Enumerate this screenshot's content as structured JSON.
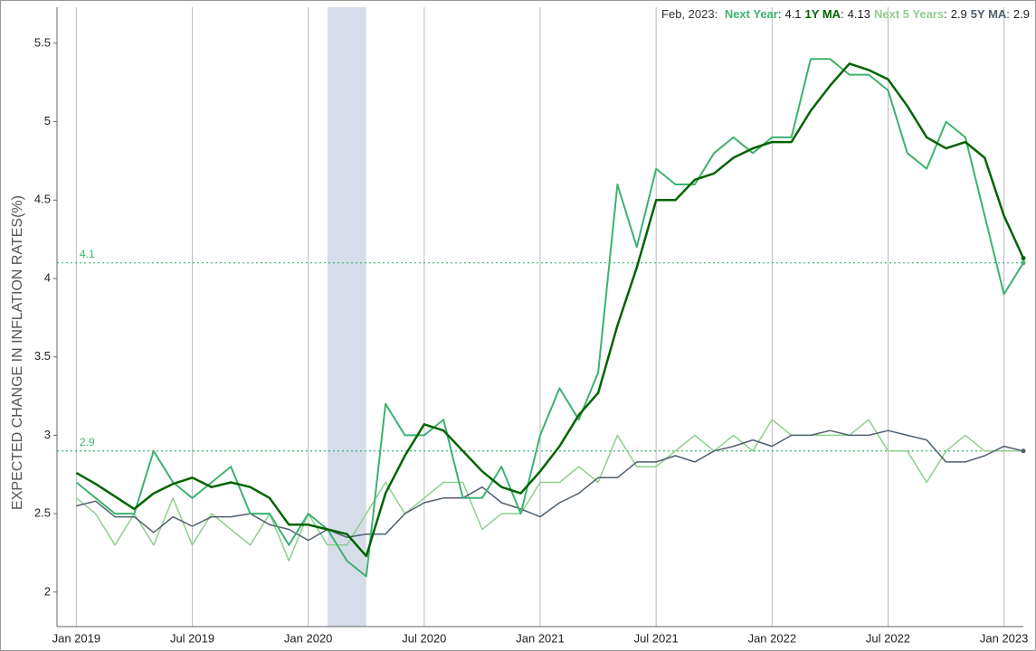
{
  "chart_data": {
    "type": "line",
    "y_label": "EXPECTED CHANGE IN INFLATION RATES(%)",
    "x": [
      "2019-01",
      "2019-02",
      "2019-03",
      "2019-04",
      "2019-05",
      "2019-06",
      "2019-07",
      "2019-08",
      "2019-09",
      "2019-10",
      "2019-11",
      "2019-12",
      "2020-01",
      "2020-02",
      "2020-03",
      "2020-04",
      "2020-05",
      "2020-06",
      "2020-07",
      "2020-08",
      "2020-09",
      "2020-10",
      "2020-11",
      "2020-12",
      "2021-01",
      "2021-02",
      "2021-03",
      "2021-04",
      "2021-05",
      "2021-06",
      "2021-07",
      "2021-08",
      "2021-09",
      "2021-10",
      "2021-11",
      "2021-12",
      "2022-01",
      "2022-02",
      "2022-03",
      "2022-04",
      "2022-05",
      "2022-06",
      "2022-07",
      "2022-08",
      "2022-09",
      "2022-10",
      "2022-11",
      "2022-12",
      "2023-01",
      "2023-02"
    ],
    "series": [
      {
        "name": "Next Year",
        "color": "#3cb371",
        "width": 2,
        "values": [
          2.7,
          2.6,
          2.5,
          2.5,
          2.9,
          2.7,
          2.6,
          2.7,
          2.8,
          2.5,
          2.5,
          2.3,
          2.5,
          2.4,
          2.2,
          2.1,
          3.2,
          3.0,
          3.0,
          3.1,
          2.6,
          2.6,
          2.8,
          2.5,
          3.0,
          3.3,
          3.1,
          3.4,
          4.6,
          4.2,
          4.7,
          4.6,
          4.6,
          4.8,
          4.9,
          4.8,
          4.9,
          4.9,
          5.4,
          5.4,
          5.3,
          5.3,
          5.2,
          4.8,
          4.7,
          5.0,
          4.9,
          4.4,
          3.9,
          4.1
        ]
      },
      {
        "name": "1Y MA",
        "color": "#006400",
        "width": 2.5,
        "values": [
          2.76,
          2.69,
          2.61,
          2.53,
          2.63,
          2.69,
          2.73,
          2.67,
          2.7,
          2.67,
          2.6,
          2.43,
          2.43,
          2.4,
          2.37,
          2.23,
          2.63,
          2.87,
          3.07,
          3.03,
          2.9,
          2.77,
          2.67,
          2.63,
          2.77,
          2.93,
          3.13,
          3.27,
          3.7,
          4.07,
          4.5,
          4.5,
          4.63,
          4.67,
          4.77,
          4.83,
          4.87,
          4.87,
          5.07,
          5.23,
          5.37,
          5.33,
          5.27,
          5.1,
          4.9,
          4.83,
          4.87,
          4.77,
          4.4,
          4.13
        ]
      },
      {
        "name": "Next 5 Years",
        "color": "#8fcf8f",
        "width": 1.5,
        "values": [
          2.6,
          2.5,
          2.3,
          2.5,
          2.3,
          2.6,
          2.3,
          2.5,
          2.4,
          2.3,
          2.5,
          2.2,
          2.5,
          2.3,
          2.3,
          2.5,
          2.7,
          2.5,
          2.6,
          2.7,
          2.7,
          2.4,
          2.5,
          2.5,
          2.7,
          2.7,
          2.8,
          2.7,
          3.0,
          2.8,
          2.8,
          2.9,
          3.0,
          2.9,
          3.0,
          2.9,
          3.1,
          3.0,
          3.0,
          3.0,
          3.0,
          3.1,
          2.9,
          2.9,
          2.7,
          2.9,
          3.0,
          2.9,
          2.9,
          2.9
        ]
      },
      {
        "name": "5Y MA",
        "color": "#4f5f6f",
        "width": 1.5,
        "values": [
          2.55,
          2.58,
          2.48,
          2.48,
          2.38,
          2.48,
          2.42,
          2.48,
          2.48,
          2.5,
          2.43,
          2.4,
          2.33,
          2.4,
          2.35,
          2.37,
          2.37,
          2.5,
          2.57,
          2.6,
          2.6,
          2.67,
          2.57,
          2.53,
          2.48,
          2.57,
          2.63,
          2.73,
          2.73,
          2.83,
          2.83,
          2.87,
          2.83,
          2.9,
          2.93,
          2.97,
          2.93,
          3.0,
          3.0,
          3.03,
          3.0,
          3.0,
          3.03,
          3.0,
          2.97,
          2.83,
          2.83,
          2.87,
          2.93,
          2.9
        ]
      }
    ],
    "readout": {
      "date": "Feb, 2023:",
      "values": [
        4.1,
        4.13,
        2.9,
        2.9
      ]
    },
    "reference_lines": [
      {
        "value": 4.1,
        "color": "#3cb371"
      },
      {
        "value": 2.9,
        "color": "#3cb371"
      }
    ],
    "shaded_range": {
      "from": "2020-02",
      "to": "2020-04",
      "color": "#d6dde8"
    },
    "xlim": [
      "2018-12",
      "2023-02"
    ],
    "xticks": [
      {
        "value": "2019-01",
        "label": "Jan 2019"
      },
      {
        "value": "2019-07",
        "label": "Jul 2019"
      },
      {
        "value": "2020-01",
        "label": "Jan 2020"
      },
      {
        "value": "2020-07",
        "label": "Jul 2020"
      },
      {
        "value": "2021-01",
        "label": "Jan 2021"
      },
      {
        "value": "2021-07",
        "label": "Jul 2021"
      },
      {
        "value": "2022-01",
        "label": "Jan 2022"
      },
      {
        "value": "2022-07",
        "label": "Jul 2022"
      },
      {
        "value": "2023-01",
        "label": "Jan 2023"
      }
    ],
    "ylim": [
      1.78,
      5.73
    ],
    "yticks": [
      2,
      2.5,
      3,
      3.5,
      4,
      4.5,
      5,
      5.5
    ],
    "grid": "x"
  }
}
